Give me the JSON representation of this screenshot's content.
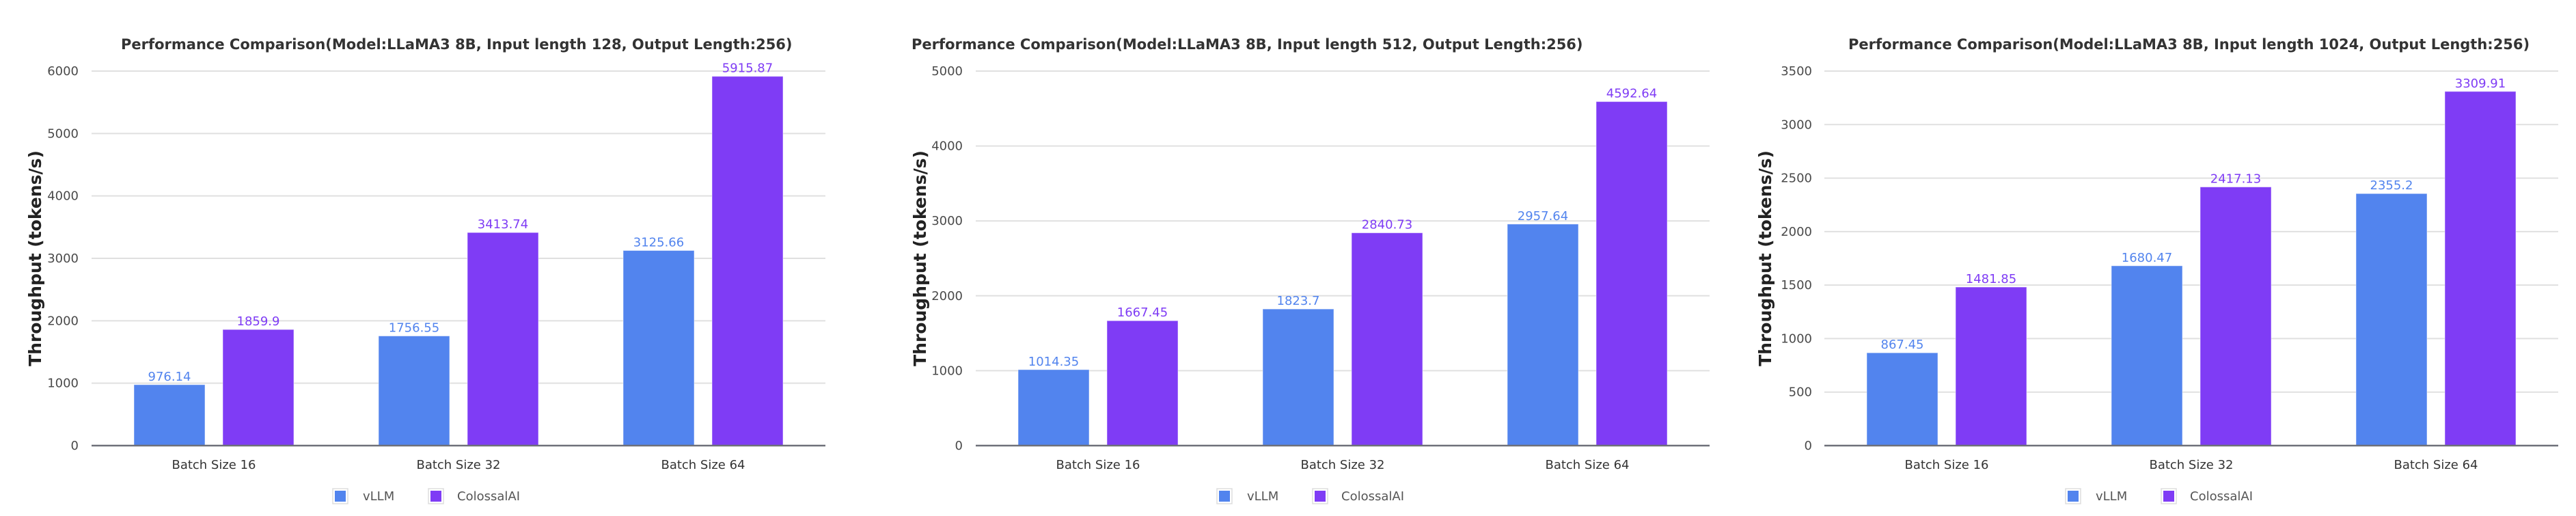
{
  "colors": {
    "vLLM": "#5284ee",
    "ColossalAI": "#7f3cf5"
  },
  "chart_data": [
    {
      "type": "bar",
      "title": "Performance Comparison(Model:LLaMA3 8B, Input length 128, Output Length:256)",
      "xlabel": "",
      "ylabel": "Throughput (tokens/s)",
      "categories": [
        "Batch Size 16",
        "Batch Size 32",
        "Batch Size 64"
      ],
      "series": [
        {
          "name": "vLLM",
          "values": [
            976.14,
            1756.55,
            3125.66
          ],
          "labels": [
            "976.14",
            "1756.55",
            "3125.66"
          ]
        },
        {
          "name": "ColossalAI",
          "values": [
            1859.9,
            3413.74,
            5915.87
          ],
          "labels": [
            "1859.9",
            "3413.74",
            "5915.87"
          ]
        }
      ],
      "ylim": [
        0,
        6000
      ],
      "yticks": [
        "0",
        "1000",
        "2000",
        "3000",
        "4000",
        "5000",
        "6000"
      ],
      "grid": true,
      "legend": "bottom-center"
    },
    {
      "type": "bar",
      "title": "Performance Comparison(Model:LLaMA3 8B, Input length 512, Output Length:256)",
      "xlabel": "",
      "ylabel": "Throughput (tokens/s)",
      "categories": [
        "Batch Size 16",
        "Batch Size 32",
        "Batch Size 64"
      ],
      "series": [
        {
          "name": "vLLM",
          "values": [
            1014.35,
            1823.7,
            2957.64
          ],
          "labels": [
            "1014.35",
            "1823.7",
            "2957.64"
          ]
        },
        {
          "name": "ColossalAI",
          "values": [
            1667.45,
            2840.73,
            4592.64
          ],
          "labels": [
            "1667.45",
            "2840.73",
            "4592.64"
          ]
        }
      ],
      "ylim": [
        0,
        5000
      ],
      "yticks": [
        "0",
        "1000",
        "2000",
        "3000",
        "4000",
        "5000"
      ],
      "grid": true,
      "legend": "bottom-center"
    },
    {
      "type": "bar",
      "title": "Performance Comparison(Model:LLaMA3 8B, Input length 1024, Output Length:256)",
      "xlabel": "",
      "ylabel": "Throughput (tokens/s)",
      "categories": [
        "Batch Size 16",
        "Batch Size 32",
        "Batch Size 64"
      ],
      "series": [
        {
          "name": "vLLM",
          "values": [
            867.45,
            1680.47,
            2355.2
          ],
          "labels": [
            "867.45",
            "1680.47",
            "2355.2"
          ]
        },
        {
          "name": "ColossalAI",
          "values": [
            1481.85,
            2417.13,
            3309.91
          ],
          "labels": [
            "1481.85",
            "2417.13",
            "3309.91"
          ]
        }
      ],
      "ylim": [
        0,
        3500
      ],
      "yticks": [
        "0",
        "500",
        "1000",
        "1500",
        "2000",
        "2500",
        "3000",
        "3500"
      ],
      "grid": true,
      "legend": "bottom-center"
    }
  ]
}
